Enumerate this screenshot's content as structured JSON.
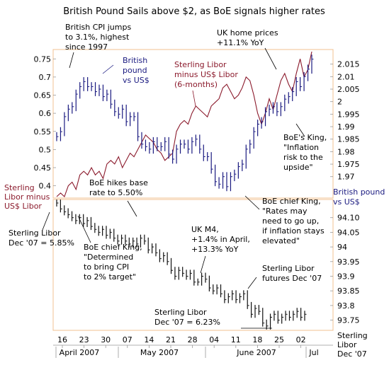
{
  "chart_data": [
    {
      "panel": "upper",
      "type": "line",
      "title": "British Pound Sails above $2, as BoE signals higher rates",
      "x_tick_labels": [
        "16",
        "23",
        "30",
        "07",
        "14",
        "21",
        "28",
        "04",
        "11",
        "18",
        "25",
        "02"
      ],
      "month_labels": [
        "April 2007",
        "May 2007",
        "June 2007",
        "Jul"
      ],
      "left_axis": {
        "ticks": [
          "0.75",
          "0.7",
          "0.65",
          "0.6",
          "0.55",
          "0.5",
          "0.45",
          "0.4"
        ],
        "range": [
          0.37,
          0.77
        ]
      },
      "right_axis": {
        "ticks": [
          "2.015",
          "2.01",
          "2.005",
          "2",
          "1.995",
          "1.99",
          "1.985",
          "1.98",
          "1.975",
          "1.97"
        ],
        "range": [
          1.962,
          2.02
        ]
      },
      "series": [
        {
          "name": "Sterling Libor minus US$ Libor (6-months)",
          "axis": "left",
          "color": "#8b1a2c",
          "values": [
            0.37,
            0.38,
            0.37,
            0.4,
            0.41,
            0.39,
            0.43,
            0.44,
            0.43,
            0.45,
            0.43,
            0.44,
            0.42,
            0.46,
            0.47,
            0.46,
            0.48,
            0.45,
            0.47,
            0.49,
            0.48,
            0.5,
            0.52,
            0.54,
            0.53,
            0.52,
            0.5,
            0.49,
            0.47,
            0.48,
            0.49,
            0.55,
            0.57,
            0.58,
            0.57,
            0.6,
            0.62,
            0.61,
            0.6,
            0.59,
            0.62,
            0.63,
            0.64,
            0.67,
            0.68,
            0.66,
            0.64,
            0.65,
            0.67,
            0.7,
            0.69,
            0.65,
            0.6,
            0.57,
            0.6,
            0.64,
            0.61,
            0.65,
            0.69,
            0.71,
            0.68,
            0.66,
            0.71,
            0.75,
            0.7,
            0.72,
            0.77
          ]
        },
        {
          "name": "British pound vs US$",
          "axis": "right",
          "color": "#1a1a80",
          "values": [
            1.986,
            1.988,
            1.994,
            1.997,
            1.998,
            2.003,
            2.006,
            2.008,
            2.006,
            2.006,
            2.004,
            2.005,
            2.002,
            2.003,
            1.999,
            1.996,
            1.995,
            1.997,
            1.992,
            1.994,
            1.994,
            1.986,
            1.983,
            1.982,
            1.981,
            1.984,
            1.982,
            1.982,
            1.984,
            1.979,
            1.977,
            1.981,
            1.983,
            1.983,
            1.981,
            1.984,
            1.985,
            1.981,
            1.978,
            1.978,
            1.973,
            1.968,
            1.967,
            1.97,
            1.966,
            1.97,
            1.971,
            1.974,
            1.975,
            1.981,
            1.983,
            1.988,
            1.991,
            1.992,
            1.996,
            1.997,
            1.998,
            1.996,
            1.998,
            2.001,
            2.002,
            2.004,
            2.008,
            2.006,
            2.01,
            2.013,
            2.017
          ]
        }
      ],
      "annotations": [
        "British CPI jumps to 3.1%, highest since 1997",
        "British pound vs US$",
        "Sterling Libor minus US$ Libor (6-months)",
        "UK home prices +11.1% YoY",
        "BoE's King, \"Inflation risk to the upside\"",
        "British pound vs US$",
        "Sterling Libor minus US$ Libor"
      ]
    },
    {
      "panel": "lower",
      "type": "line",
      "title": "",
      "right_axis": {
        "ticks": [
          "94.10",
          "94.05",
          "94",
          "93.95",
          "93.9",
          "93.85",
          "93.8",
          "93.75"
        ],
        "range": [
          93.72,
          94.15
        ]
      },
      "series": [
        {
          "name": "Sterling Libor futures Dec '07",
          "axis": "right",
          "color": "#111111",
          "values": [
            94.15,
            94.13,
            94.12,
            94.11,
            94.1,
            94.09,
            94.1,
            94.08,
            94.09,
            94.07,
            94.06,
            94.05,
            94.06,
            94.04,
            94.05,
            94.03,
            94.02,
            94.03,
            94.02,
            94.01,
            94.02,
            94.01,
            94.03,
            94.02,
            93.99,
            94.0,
            93.98,
            93.96,
            93.97,
            93.95,
            93.92,
            93.9,
            93.92,
            93.91,
            93.9,
            93.91,
            93.88,
            93.88,
            93.9,
            93.89,
            93.86,
            93.85,
            93.86,
            93.84,
            93.82,
            93.83,
            93.84,
            93.82,
            93.83,
            93.84,
            93.8,
            93.77,
            93.79,
            93.78,
            93.74,
            93.73,
            93.76,
            93.77,
            93.75,
            93.76,
            93.77,
            93.76,
            93.77,
            93.78,
            93.76,
            93.77
          ]
        }
      ],
      "annotations": [
        "Sterling Libor Dec '07 = 5.85%",
        "BoE hikes base rate to 5.50%",
        "BoE chief King, \"Determined to bring CPI to 2% target\"",
        "UK M4, +1.4% in April, +13.3% YoY",
        "BoE chief King, \"Rates may need to go up, if inflation stays elevated\"",
        "Sterling Libor futures Dec '07",
        "Sterling Libor Dec '07 = 6.23%",
        "Sterling Libor Dec '07"
      ]
    }
  ]
}
